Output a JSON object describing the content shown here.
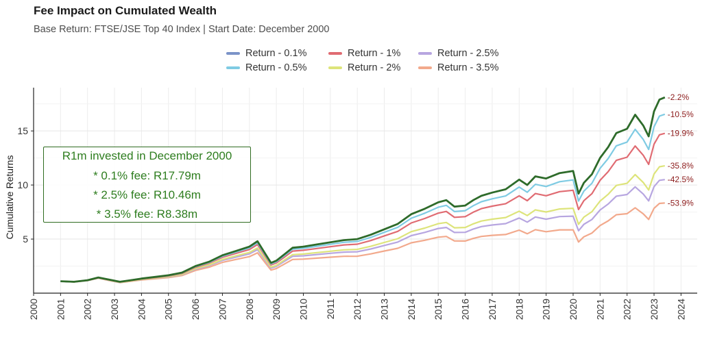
{
  "title": "Fee Impact on Cumulated Wealth",
  "subtitle": "Base Return: FTSE/JSE Top 40 Index | Start Date: December 2000",
  "legend": [
    {
      "label": "Return - 0.1%",
      "color": "#7b93c8"
    },
    {
      "label": "Return - 0.5%",
      "color": "#7fcbe3"
    },
    {
      "label": "Return - 1%",
      "color": "#e06b72"
    },
    {
      "label": "Return - 2%",
      "color": "#dde47a"
    },
    {
      "label": "Return - 2.5%",
      "color": "#b7a6e0"
    },
    {
      "label": "Return - 3.5%",
      "color": "#f2a98c"
    }
  ],
  "annotation": {
    "line1": "R1m invested in December 2000",
    "line2": "* 0.1% fee: R17.79m",
    "line3": "* 2.5% fee: R10.46m",
    "line4": "* 3.5% fee: R8.38m"
  },
  "chart_data": {
    "type": "line",
    "title": "Fee Impact on Cumulated Wealth",
    "subtitle": "Base Return: FTSE/JSE Top 40 Index | Start Date: December 2000",
    "ylabel": "Cumulative Returns",
    "xlabel": "",
    "xlim": [
      2000,
      2024.6
    ],
    "ylim": [
      0,
      19
    ],
    "x_ticks": [
      "2000",
      "2001",
      "2002",
      "2003",
      "2004",
      "2005",
      "2006",
      "2007",
      "2008",
      "2009",
      "2010",
      "2011",
      "2012",
      "2013",
      "2014",
      "2015",
      "2016",
      "2017",
      "2018",
      "2019",
      "2020",
      "2021",
      "2022",
      "2023",
      "2024"
    ],
    "y_ticks": [
      "5",
      "10",
      "15"
    ],
    "grid": true,
    "legend_position": "top",
    "base_series_color": "#2e6b2a",
    "base_x": [
      2001.0,
      2001.5,
      2002.0,
      2002.4,
      2002.8,
      2003.2,
      2003.6,
      2004.0,
      2004.5,
      2005.0,
      2005.5,
      2006.0,
      2006.5,
      2007.0,
      2007.5,
      2008.0,
      2008.3,
      2008.6,
      2008.8,
      2009.0,
      2009.3,
      2009.6,
      2010.0,
      2010.5,
      2011.0,
      2011.5,
      2012.0,
      2012.5,
      2013.0,
      2013.5,
      2014.0,
      2014.5,
      2015.0,
      2015.3,
      2015.6,
      2016.0,
      2016.3,
      2016.6,
      2017.0,
      2017.5,
      2018.0,
      2018.3,
      2018.6,
      2019.0,
      2019.5,
      2020.0,
      2020.2,
      2020.4,
      2020.7,
      2021.0,
      2021.3,
      2021.6,
      2022.0,
      2022.3,
      2022.6,
      2022.8,
      2023.0,
      2023.2,
      2023.4
    ],
    "base_y": [
      1.1,
      1.05,
      1.2,
      1.45,
      1.25,
      1.05,
      1.2,
      1.35,
      1.5,
      1.65,
      1.9,
      2.5,
      2.9,
      3.5,
      3.9,
      4.3,
      4.8,
      3.6,
      2.8,
      3.0,
      3.6,
      4.2,
      4.3,
      4.5,
      4.7,
      4.9,
      5.0,
      5.4,
      5.9,
      6.4,
      7.3,
      7.8,
      8.4,
      8.6,
      8.0,
      8.1,
      8.6,
      9.0,
      9.3,
      9.6,
      10.5,
      10.0,
      10.8,
      10.6,
      11.1,
      11.3,
      9.2,
      10.2,
      11.0,
      12.5,
      13.5,
      14.8,
      15.2,
      16.5,
      15.5,
      14.5,
      16.8,
      17.9,
      18.1
    ],
    "series": [
      {
        "name": "Return - 0.1%",
        "fee": 0.1,
        "end_label": "-2.2%"
      },
      {
        "name": "Return - 0.5%",
        "fee": 0.5,
        "end_label": "-10.5%"
      },
      {
        "name": "Return - 1%",
        "fee": 1.0,
        "end_label": "-19.9%"
      },
      {
        "name": "Return - 2%",
        "fee": 2.0,
        "end_label": "-35.8%"
      },
      {
        "name": "Return - 2.5%",
        "fee": 2.5,
        "end_label": "-42.5%"
      },
      {
        "name": "Return - 3.5%",
        "fee": 3.5,
        "end_label": "-53.9%"
      }
    ],
    "annotations": [
      "R1m invested in December 2000",
      "* 0.1% fee: R17.79m",
      "* 2.5% fee: R10.46m",
      "* 3.5% fee: R8.38m"
    ]
  }
}
